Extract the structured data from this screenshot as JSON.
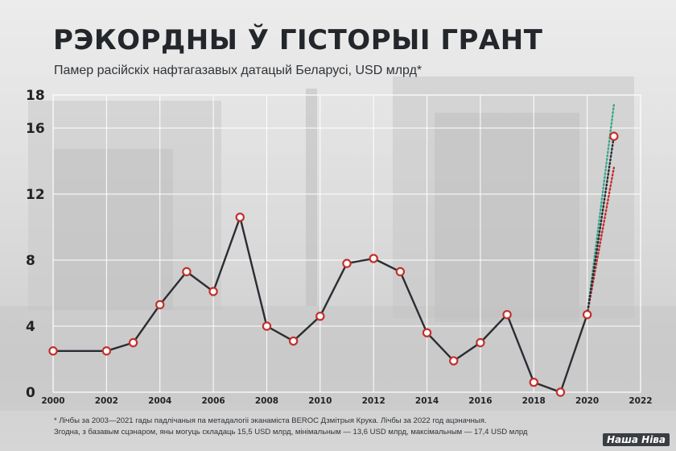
{
  "title": "РЭКОРДНЫ Ў ГІСТОРЫІ ГРАНТ",
  "subtitle": "Памер расійскіх нафтагазавых датацый Беларусі, USD млрд*",
  "footnote_line1": "* Лічбы за 2003—2021 гады падлічаныя па метадалогіі эканаміста BEROC Дзмітрыя Крука. Лічбы за 2022 год ацэначныя.",
  "footnote_line2": "Згодна, з базавым сцэнаром, яны могуць складаць 15,5 USD млрд, мінімальным — 13,6 USD млрд, максімальным — 17,4 USD млрд",
  "logo_text": "Наша Ніва",
  "colors": {
    "line": "#2a2d33",
    "marker_stroke": "#c4302b",
    "marker_fill": "#ffffff",
    "grid": "#ffffff",
    "minimum_scenario": "#c4302b",
    "maximum_scenario": "#3aa88a"
  },
  "chart_data": {
    "type": "line",
    "xlim": [
      2000,
      2022
    ],
    "ylim": [
      0,
      18
    ],
    "yticks": [
      0,
      4,
      8,
      12,
      16,
      18
    ],
    "xticks": [
      2000,
      2002,
      2004,
      2006,
      2008,
      2010,
      2012,
      2014,
      2016,
      2018,
      2020,
      2022
    ],
    "grid": true,
    "series": [
      {
        "name": "",
        "x": [
          2000,
          2002,
          2003,
          2004,
          2005,
          2006,
          2007,
          2008,
          2009,
          2010,
          2011,
          2012,
          2013,
          2014,
          2015,
          2016,
          2017,
          2018,
          2019,
          2020,
          2021,
          2022
        ],
        "y": [
          2.5,
          2.5,
          3.0,
          5.3,
          7.3,
          6.1,
          10.6,
          4.0,
          3.1,
          4.6,
          7.8,
          8.1,
          7.3,
          3.6,
          1.9,
          3.0,
          4.7,
          0.6,
          0,
          4.7,
          15.5,
          null
        ]
      }
    ],
    "scenarios_2022": {
      "base": 15.5,
      "min": 13.6,
      "max": 17.4
    }
  }
}
